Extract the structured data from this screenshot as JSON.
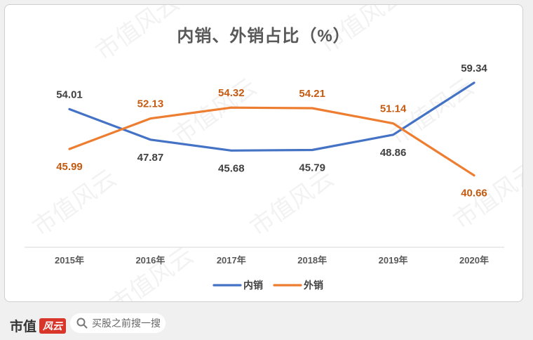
{
  "chart_data": {
    "type": "line",
    "title": "内销、外销占比（%）",
    "categories": [
      "2015年",
      "2016年",
      "2017年",
      "2018年",
      "2019年",
      "2020年"
    ],
    "series": [
      {
        "name": "内销",
        "color": "#4472c4",
        "values": [
          54.01,
          47.87,
          45.68,
          45.79,
          48.86,
          59.34
        ]
      },
      {
        "name": "外销",
        "color": "#ed7d31",
        "values": [
          45.99,
          52.13,
          54.32,
          54.21,
          51.14,
          40.66
        ]
      }
    ],
    "ylim": [
      30,
      62
    ],
    "grid": false,
    "legend_position": "bottom",
    "label_colors": {
      "内销": "#404040",
      "外销": "#c55a11"
    }
  },
  "watermark": "市值风云",
  "footer": {
    "brand_name": "市值",
    "brand_logo_text": "风云",
    "search_placeholder": "买股之前搜一搜"
  }
}
